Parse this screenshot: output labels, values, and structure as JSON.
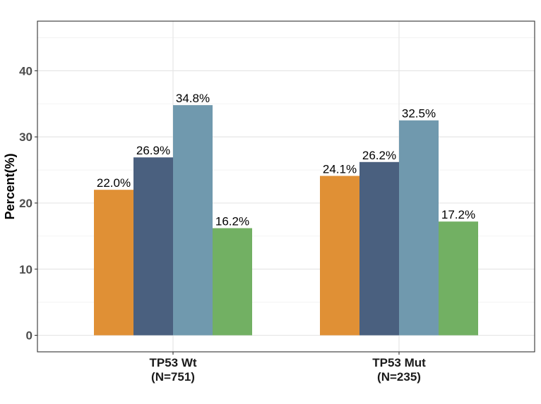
{
  "chart_data": {
    "type": "bar",
    "title": "",
    "xlabel": "",
    "ylabel": "Percent(%)",
    "ylim": [
      -2.5,
      47.5
    ],
    "yticks": [
      0,
      10,
      20,
      30,
      40
    ],
    "grid": true,
    "legend": "none",
    "categories": [
      {
        "line1": "TP53 Wt",
        "line2": "(N=751)"
      },
      {
        "line1": "TP53 Mut",
        "line2": "(N=235)"
      }
    ],
    "series": [
      {
        "color": "#E09035",
        "values": [
          22.0,
          24.1
        ],
        "labels": [
          "22.0%",
          "24.1%"
        ]
      },
      {
        "color": "#4A607F",
        "values": [
          26.9,
          26.2
        ],
        "labels": [
          "26.9%",
          "26.2%"
        ]
      },
      {
        "color": "#7099AE",
        "values": [
          34.8,
          32.5
        ],
        "labels": [
          "34.8%",
          "32.5%"
        ]
      },
      {
        "color": "#72B063",
        "values": [
          16.2,
          17.2
        ],
        "labels": [
          "16.2%",
          "17.2%"
        ]
      }
    ]
  }
}
